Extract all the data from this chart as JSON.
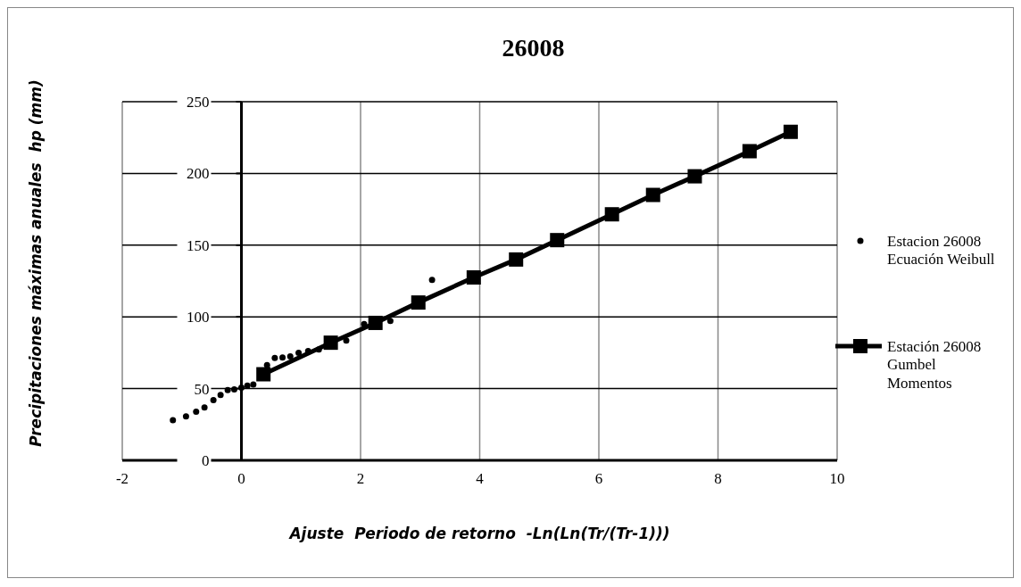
{
  "chart_data": {
    "type": "scatter",
    "title": "26008",
    "xlabel": "Ajuste  Periodo de retorno  -Ln(Ln(Tr/(Tr-1)))",
    "ylabel": "Precipitaciones máximas anuales  hp (mm)",
    "xlim": [
      -2,
      10
    ],
    "ylim": [
      0,
      250
    ],
    "xticks": [
      -2,
      0,
      2,
      4,
      6,
      8,
      10
    ],
    "yticks": [
      0,
      50,
      100,
      150,
      200,
      250
    ],
    "grid": true,
    "legend": "right",
    "series": [
      {
        "name": "Estacion 26008 Ecuación Weibull",
        "color": "#000000",
        "type": "scatter",
        "marker": "circle",
        "x": [
          -1.15,
          -0.93,
          -0.76,
          -0.62,
          -0.47,
          -0.35,
          -0.23,
          -0.12,
          0.0,
          0.1,
          0.2,
          0.43,
          0.56,
          0.69,
          0.82,
          0.96,
          1.12,
          1.3,
          1.76,
          2.06,
          2.5,
          3.2
        ],
        "values": [
          28,
          30.6,
          33.9,
          36.9,
          42,
          45.6,
          49,
          49.4,
          50.7,
          52.1,
          52.8,
          66.4,
          71.4,
          71.6,
          72.4,
          75,
          76.2,
          77.3,
          83.5,
          95,
          97.2,
          125.8
        ]
      },
      {
        "name": "Estación 26008 Gumbel Momentos",
        "color": "#000000",
        "type": "line",
        "marker": "square",
        "line_style": "solid",
        "x": [
          0.37,
          1.5,
          2.25,
          2.97,
          3.9,
          4.61,
          5.3,
          6.22,
          6.91,
          7.61,
          8.53,
          9.22
        ],
        "values": [
          60,
          82,
          95.8,
          110,
          127.5,
          140,
          153.5,
          171.5,
          185,
          198,
          215.5,
          229
        ]
      }
    ]
  }
}
